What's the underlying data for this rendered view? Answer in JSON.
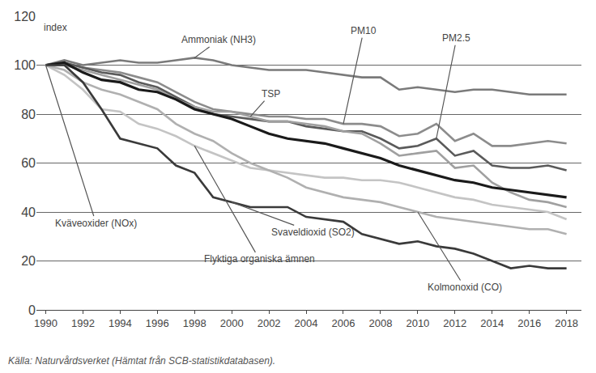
{
  "chart_data": {
    "type": "line",
    "ylabel": "index",
    "source": "Källa: Naturvårdsverket (Hämtat från SCB-statistikdatabasen).",
    "x": [
      1990,
      1991,
      1992,
      1993,
      1994,
      1995,
      1996,
      1997,
      1998,
      1999,
      2000,
      2001,
      2002,
      2003,
      2004,
      2005,
      2006,
      2007,
      2008,
      2009,
      2010,
      2011,
      2012,
      2013,
      2014,
      2015,
      2016,
      2017,
      2018
    ],
    "xlim": [
      1989.5,
      2018.8
    ],
    "xticks": [
      1990,
      1992,
      1994,
      1996,
      1998,
      2000,
      2002,
      2004,
      2006,
      2008,
      2010,
      2012,
      2014,
      2016,
      2018
    ],
    "ylim": [
      0,
      120
    ],
    "yticks": [
      0,
      20,
      40,
      60,
      80,
      100,
      120
    ],
    "grid": "y",
    "series": [
      {
        "name": "Ammoniak (NH3)",
        "color": "#7a7a7a",
        "values": [
          100,
          102,
          100,
          101,
          102,
          101,
          101,
          102,
          103,
          102,
          100,
          99,
          98,
          98,
          98,
          97,
          96,
          95,
          95,
          90,
          91,
          90,
          89,
          90,
          90,
          89,
          88,
          88,
          88
        ]
      },
      {
        "name": "PM10",
        "color": "#8c8c8c",
        "values": [
          100,
          101,
          99,
          98,
          97,
          95,
          93,
          89,
          85,
          82,
          81,
          80,
          79,
          79,
          78,
          78,
          76,
          76,
          75,
          71,
          72,
          76,
          69,
          72,
          67,
          67,
          68,
          69,
          68
        ]
      },
      {
        "name": "PM2.5",
        "color": "#5a5a5a",
        "values": [
          100,
          101,
          99,
          97,
          96,
          93,
          91,
          87,
          83,
          80,
          79,
          78,
          77,
          77,
          75,
          74,
          73,
          73,
          70,
          66,
          67,
          70,
          63,
          65,
          59,
          58,
          58,
          59,
          57
        ]
      },
      {
        "name": "TSP",
        "color": "#a0a0a0",
        "values": [
          100,
          100,
          98,
          96,
          94,
          92,
          90,
          86,
          83,
          81,
          81,
          79,
          77,
          77,
          76,
          75,
          73,
          72,
          68,
          63,
          64,
          65,
          58,
          59,
          52,
          48,
          45,
          44,
          42
        ]
      },
      {
        "name": "Kväveoxider (NOx)",
        "color": "#1a1a1a",
        "values": [
          100,
          101,
          97,
          94,
          93,
          90,
          89,
          86,
          82,
          80,
          78,
          75,
          72,
          70,
          69,
          68,
          66,
          64,
          62,
          59,
          57,
          55,
          53,
          52,
          50,
          49,
          48,
          47,
          46
        ]
      },
      {
        "name": "Flyktiga organiska ämnen",
        "color": "#c4c4c4",
        "values": [
          100,
          96,
          90,
          82,
          81,
          76,
          74,
          71,
          67,
          64,
          61,
          58,
          57,
          56,
          55,
          54,
          54,
          53,
          53,
          52,
          50,
          48,
          46,
          45,
          43,
          42,
          41,
          40,
          37
        ]
      },
      {
        "name": "Kolmonoxid (CO)",
        "color": "#b0b0b0",
        "values": [
          100,
          98,
          93,
          90,
          88,
          85,
          82,
          76,
          72,
          69,
          64,
          60,
          57,
          54,
          50,
          48,
          46,
          45,
          44,
          42,
          40,
          38,
          37,
          36,
          35,
          34,
          33,
          33,
          31
        ]
      },
      {
        "name": "Svaveldioxid (SO2)",
        "color": "#3a3a3a",
        "values": [
          100,
          100,
          93,
          82,
          70,
          68,
          66,
          59,
          56,
          46,
          44,
          42,
          42,
          42,
          38,
          37,
          36,
          31,
          29,
          27,
          28,
          26,
          25,
          23,
          20,
          17,
          18,
          17,
          17
        ]
      }
    ]
  }
}
